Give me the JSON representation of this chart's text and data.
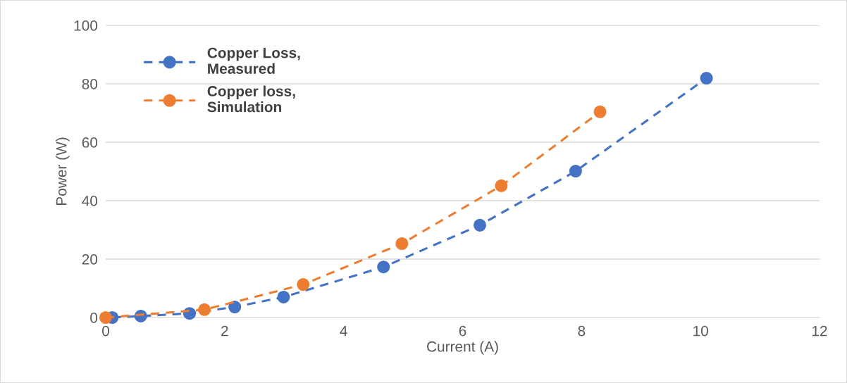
{
  "chart_data": {
    "type": "line",
    "xlabel": "Current (A)",
    "ylabel": "Power (W)",
    "xlim": [
      0,
      12
    ],
    "xticks": [
      0,
      2,
      4,
      6,
      8,
      10,
      12
    ],
    "ylim": [
      0,
      100
    ],
    "yticks": [
      0,
      20,
      40,
      60,
      80,
      100
    ],
    "grid": "y",
    "legend": "top left",
    "marker": "circle",
    "line_style": "dashed",
    "series": [
      {
        "name": "Copper Loss,\nMeasured",
        "color": "#4472c4",
        "x": [
          0.11,
          0.59,
          1.41,
          2.17,
          2.99,
          4.67,
          6.29,
          7.9,
          10.1
        ],
        "values": [
          0,
          0.5,
          1.4,
          3.6,
          7.0,
          17.3,
          31.6,
          50.1,
          81.9
        ]
      },
      {
        "name": "Copper loss,\nSimulation",
        "color": "#ed7d31",
        "x": [
          0,
          1.66,
          3.32,
          4.98,
          6.65,
          8.31
        ],
        "values": [
          0,
          2.7,
          11.3,
          25.3,
          45.1,
          70.4
        ]
      }
    ]
  }
}
